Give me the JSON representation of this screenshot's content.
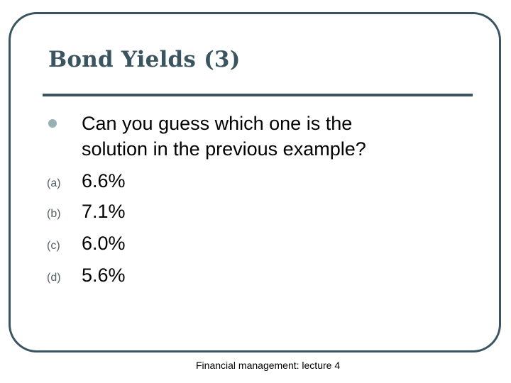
{
  "slide": {
    "title": "Bond Yields (3)",
    "question_lines": [
      "Can you guess which one is the",
      "solution in the previous example?"
    ],
    "options": [
      {
        "marker": "(a)",
        "value": "6.6%"
      },
      {
        "marker": "(b)",
        "value": "7.1%"
      },
      {
        "marker": "(c)",
        "value": "6.0%"
      },
      {
        "marker": "(d)",
        "value": "5.6%"
      }
    ],
    "footer": "Financial management: lecture 4"
  },
  "colors": {
    "frame": "#3a5560",
    "title": "#3a5560",
    "bullet": "#98b0b4"
  }
}
